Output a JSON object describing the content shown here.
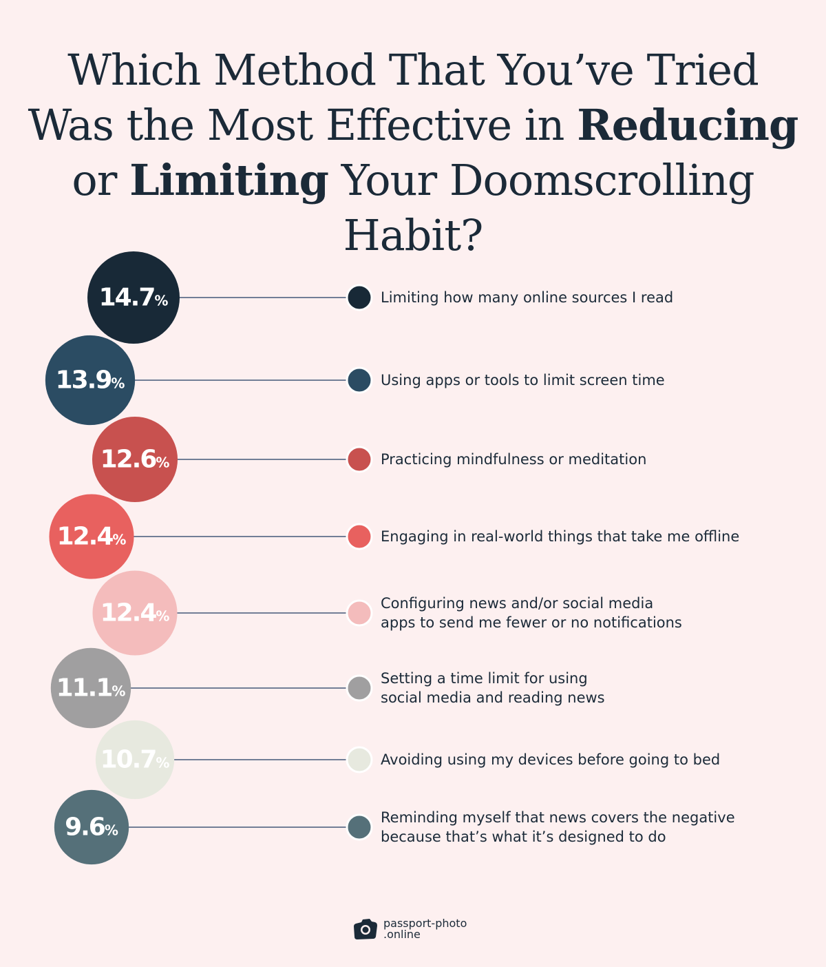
{
  "title": {
    "part1": "Which Method That You’ve Tried",
    "part2": "Was the Most Effective in ",
    "bold1": "Reducing",
    "part3": "or ",
    "bold2": "Limiting",
    "part4": " Your Doomscrolling Habit?"
  },
  "chart_data": {
    "type": "bubble",
    "unit": "%",
    "items": [
      {
        "label": "Limiting how many online sources I read",
        "value": 14.7,
        "color": "#182937"
      },
      {
        "label": "Using apps or tools to limit screen time",
        "value": 13.9,
        "color": "#2b4c63"
      },
      {
        "label": "Practicing mindfulness or meditation",
        "value": 12.6,
        "color": "#c8514f"
      },
      {
        "label": "Engaging in real-world things that take me offline",
        "value": 12.4,
        "color": "#e8615f"
      },
      {
        "label": "Configuring news and/or social media\napps to send me fewer or no notifications",
        "value": 12.4,
        "color": "#f4bcbc"
      },
      {
        "label": "Setting a time limit for using\nsocial media and reading news",
        "value": 11.1,
        "color": "#a09fa0"
      },
      {
        "label": "Avoiding using my devices before going to bed",
        "value": 10.7,
        "color": "#e7e9df"
      },
      {
        "label": "Reminding myself that news covers the negative\nbecause that’s what it’s designed to do",
        "value": 9.6,
        "color": "#557079"
      }
    ],
    "connector_color": "#1e3a5f"
  },
  "logo": {
    "line1": "passport-photo",
    "line2": ".online",
    "icon": "camera-icon"
  }
}
